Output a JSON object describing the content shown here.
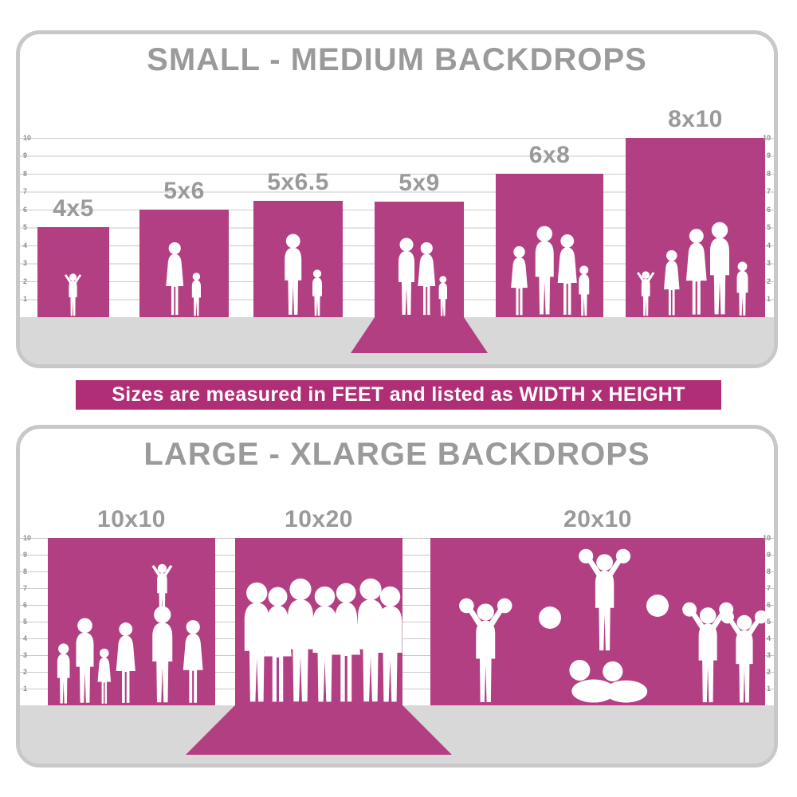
{
  "colors": {
    "magenta": "#b23f82",
    "banner_magenta": "#b02e76",
    "title_gray": "#9a9a9a",
    "floor_gray": "#d8d8d8",
    "border_gray": "#c8c8c8",
    "grid_gray": "#c9c9c9",
    "ruler_gray": "#8d8d8d"
  },
  "banner": {
    "text": "Sizes are measured in FEET and listed as WIDTH x HEIGHT"
  },
  "small_panel": {
    "title": "SMALL - MEDIUM BACKDROPS",
    "ruler_numbers": [
      10,
      9,
      8,
      7,
      6,
      5,
      4,
      3,
      2,
      1
    ],
    "backdrops": [
      {
        "label": "4x5",
        "width_ft": 4,
        "height_ft": 5,
        "figures": "toddler with raised arms"
      },
      {
        "label": "5x6",
        "width_ft": 5,
        "height_ft": 6,
        "figures": "mother and child"
      },
      {
        "label": "5x6.5",
        "width_ft": 5,
        "height_ft": 6.5,
        "figures": "father and son"
      },
      {
        "label": "5x9",
        "width_ft": 5,
        "height_ft": 9,
        "figures": "family of three on floor sweep",
        "floor_sweep": true
      },
      {
        "label": "6x8",
        "width_ft": 6,
        "height_ft": 8,
        "figures": "family of four"
      },
      {
        "label": "8x10",
        "width_ft": 8,
        "height_ft": 10,
        "figures": "family of five"
      }
    ]
  },
  "large_panel": {
    "title": "LARGE - XLARGE BACKDROPS",
    "ruler_numbers": [
      10,
      9,
      8,
      7,
      6,
      5,
      4,
      3,
      2,
      1
    ],
    "backdrops": [
      {
        "label": "10x10",
        "width_ft": 10,
        "height_ft": 10,
        "figures": "family group with child on shoulders"
      },
      {
        "label": "10x20",
        "width_ft": 10,
        "height_ft": 20,
        "figures": "group of seven adults on floor sweep",
        "floor_sweep": true
      },
      {
        "label": "20x10",
        "width_ft": 20,
        "height_ft": 10,
        "figures": "cheerleading squad with pyramid and pom-poms"
      }
    ]
  }
}
